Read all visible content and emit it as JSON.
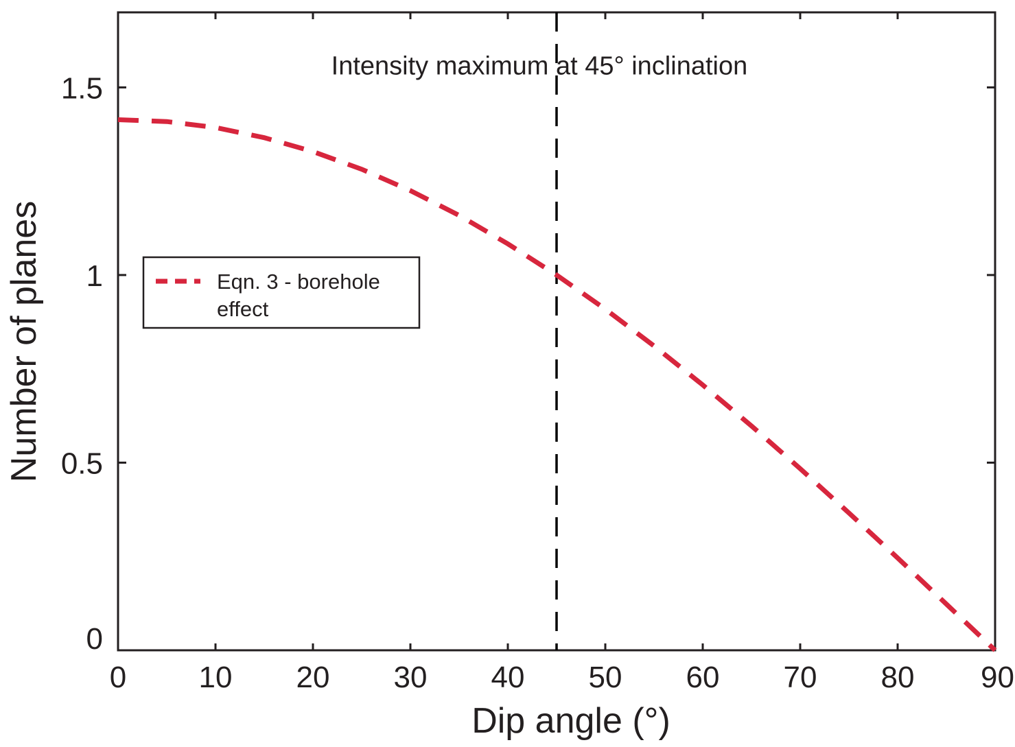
{
  "chart_data": {
    "type": "line",
    "xlabel": "Dip angle (°)",
    "ylabel": "Number of planes",
    "xlim": [
      0,
      90
    ],
    "ylim": [
      0,
      1.7
    ],
    "x_ticks": [
      0,
      10,
      20,
      30,
      40,
      50,
      60,
      70,
      80,
      90
    ],
    "y_ticks": [
      0,
      0.5,
      1,
      1.5
    ],
    "x_tick_labels": [
      "0",
      "10",
      "20",
      "30",
      "40",
      "50",
      "60",
      "70",
      "80",
      "90"
    ],
    "y_tick_labels": [
      "0",
      "0.5",
      "1",
      "1.5"
    ],
    "grid": false,
    "legend_position": "left",
    "series": [
      {
        "name": "Eqn. 3 - borehole effect",
        "style": "dashed",
        "color": "#d7263d",
        "x": [
          0,
          5,
          10,
          15,
          20,
          25,
          30,
          35,
          40,
          45,
          50,
          55,
          60,
          65,
          70,
          75,
          80,
          85,
          90
        ],
        "y": [
          1.414,
          1.409,
          1.393,
          1.366,
          1.329,
          1.282,
          1.225,
          1.159,
          1.083,
          1.0,
          0.909,
          0.811,
          0.707,
          0.598,
          0.484,
          0.366,
          0.246,
          0.123,
          0.0
        ]
      }
    ],
    "reference_lines": [
      {
        "orientation": "vertical",
        "x": 45,
        "style": "dashed",
        "color": "#000000"
      }
    ],
    "annotations": [
      {
        "text": "Intensity maximum at 45° inclination",
        "x": 43.8,
        "y": 1.56
      }
    ],
    "legend": {
      "line1": "Eqn. 3 - borehole",
      "line2": "effect"
    }
  }
}
